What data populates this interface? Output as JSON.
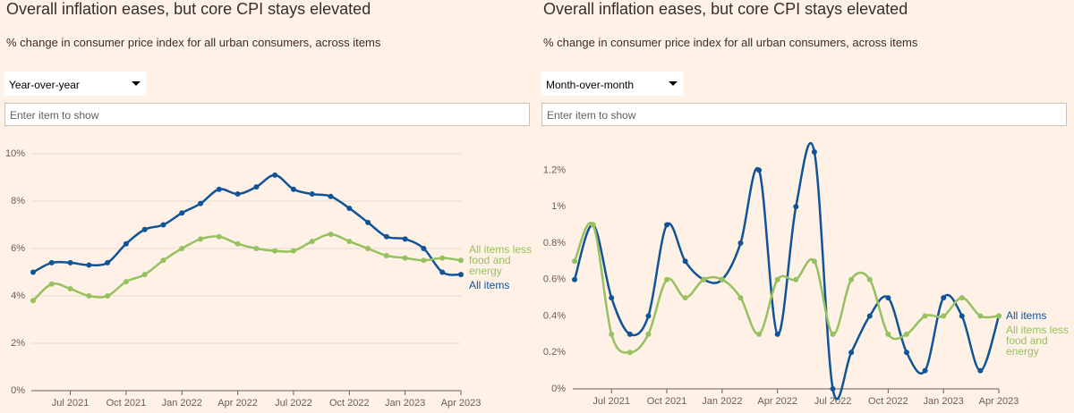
{
  "chart_data": [
    {
      "type": "line",
      "title": "Overall inflation eases, but core CPI stays elevated",
      "subtitle": "% change in consumer price index for all urban consumers, across items",
      "dropdown": "Year-over-year",
      "search_placeholder": "Enter item to show",
      "x": [
        "2021-05",
        "2021-06",
        "2021-07",
        "2021-08",
        "2021-09",
        "2021-10",
        "2021-11",
        "2021-12",
        "2022-01",
        "2022-02",
        "2022-03",
        "2022-04",
        "2022-05",
        "2022-06",
        "2022-07",
        "2022-08",
        "2022-09",
        "2022-10",
        "2022-11",
        "2022-12",
        "2023-01",
        "2023-02",
        "2023-03",
        "2023-04"
      ],
      "xticks": [
        {
          "value": "2021-07",
          "label": "Jul 2021"
        },
        {
          "value": "2021-10",
          "label": "Oct 2021"
        },
        {
          "value": "2022-01",
          "label": "Jan 2022"
        },
        {
          "value": "2022-04",
          "label": "Apr 2022"
        },
        {
          "value": "2022-07",
          "label": "Jul 2022"
        },
        {
          "value": "2022-10",
          "label": "Oct 2022"
        },
        {
          "value": "2023-01",
          "label": "Jan 2023"
        },
        {
          "value": "2023-04",
          "label": "Apr 2023"
        }
      ],
      "ylim": [
        0,
        10
      ],
      "yticks": [
        {
          "value": 0,
          "label": "0%"
        },
        {
          "value": 2,
          "label": "2%"
        },
        {
          "value": 4,
          "label": "4%"
        },
        {
          "value": 6,
          "label": "6%"
        },
        {
          "value": 8,
          "label": "8%"
        },
        {
          "value": 10,
          "label": "10%"
        }
      ],
      "grid": true,
      "series": [
        {
          "name": "All items",
          "color": "#0f5499",
          "values": [
            5.0,
            5.4,
            5.4,
            5.3,
            5.4,
            6.2,
            6.8,
            7.0,
            7.5,
            7.9,
            8.5,
            8.3,
            8.6,
            9.1,
            8.5,
            8.3,
            8.2,
            7.7,
            7.1,
            6.5,
            6.4,
            6.0,
            5.0,
            4.9
          ]
        },
        {
          "name": "All items less food and energy",
          "color": "#96c160",
          "values": [
            3.8,
            4.5,
            4.3,
            4.0,
            4.0,
            4.6,
            4.9,
            5.5,
            6.0,
            6.4,
            6.5,
            6.2,
            6.0,
            5.9,
            5.9,
            6.3,
            6.6,
            6.3,
            6.0,
            5.7,
            5.6,
            5.5,
            5.6,
            5.5
          ]
        }
      ]
    },
    {
      "type": "line",
      "title": "Overall inflation eases, but core CPI stays elevated",
      "subtitle": "% change in consumer price index for all urban consumers, across items",
      "dropdown": "Month-over-month",
      "search_placeholder": "Enter item to show",
      "x": [
        "2021-05",
        "2021-06",
        "2021-07",
        "2021-08",
        "2021-09",
        "2021-10",
        "2021-11",
        "2021-12",
        "2022-01",
        "2022-02",
        "2022-03",
        "2022-04",
        "2022-05",
        "2022-06",
        "2022-07",
        "2022-08",
        "2022-09",
        "2022-10",
        "2022-11",
        "2022-12",
        "2023-01",
        "2023-02",
        "2023-03",
        "2023-04"
      ],
      "xticks": [
        {
          "value": "2021-07",
          "label": "Jul 2021"
        },
        {
          "value": "2021-10",
          "label": "Oct 2021"
        },
        {
          "value": "2022-01",
          "label": "Jan 2022"
        },
        {
          "value": "2022-04",
          "label": "Apr 2022"
        },
        {
          "value": "2022-07",
          "label": "Jul 2022"
        },
        {
          "value": "2022-10",
          "label": "Oct 2022"
        },
        {
          "value": "2023-01",
          "label": "Jan 2023"
        },
        {
          "value": "2023-04",
          "label": "Apr 2023"
        }
      ],
      "ylim": [
        0,
        1.3
      ],
      "yticks": [
        {
          "value": 0,
          "label": "0%"
        },
        {
          "value": 0.2,
          "label": "0.2%"
        },
        {
          "value": 0.4,
          "label": "0.4%"
        },
        {
          "value": 0.6,
          "label": "0.6%"
        },
        {
          "value": 0.8,
          "label": "0.8%"
        },
        {
          "value": 1,
          "label": "1%"
        },
        {
          "value": 1.2,
          "label": "1.2%"
        }
      ],
      "grid": false,
      "series": [
        {
          "name": "All items",
          "color": "#0f5499",
          "values": [
            0.6,
            0.9,
            0.5,
            0.3,
            0.4,
            0.9,
            0.7,
            0.6,
            0.6,
            0.8,
            1.2,
            0.3,
            1.0,
            1.3,
            0.0,
            0.2,
            0.4,
            0.5,
            0.2,
            0.1,
            0.5,
            0.4,
            0.1,
            0.4
          ]
        },
        {
          "name": "All items less food and energy",
          "color": "#96c160",
          "values": [
            0.7,
            0.9,
            0.3,
            0.2,
            0.3,
            0.6,
            0.5,
            0.6,
            0.6,
            0.5,
            0.3,
            0.6,
            0.6,
            0.7,
            0.3,
            0.6,
            0.6,
            0.3,
            0.3,
            0.4,
            0.4,
            0.5,
            0.4,
            0.4
          ]
        }
      ]
    }
  ]
}
